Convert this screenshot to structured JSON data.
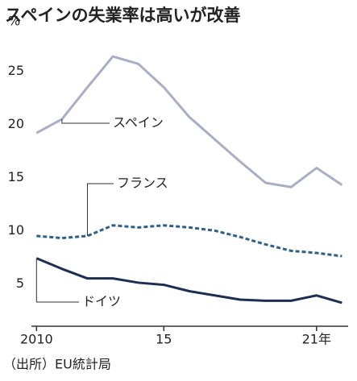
{
  "chart_data": {
    "type": "line",
    "title": "スペインの失業率は高いが改善",
    "y_unit": "%",
    "source": "（出所）EU統計局",
    "x": [
      2010,
      2011,
      2012,
      2013,
      2014,
      2015,
      2016,
      2017,
      2018,
      2019,
      2020,
      2021,
      2022
    ],
    "xlim": [
      2009.8,
      2022.4
    ],
    "xticks": [
      2010,
      {
        "value": 2015,
        "label": "15"
      },
      {
        "value": 2021,
        "label": "21年"
      }
    ],
    "ylim": [
      1,
      28
    ],
    "yticks": [
      5,
      10,
      15,
      20,
      25
    ],
    "grid": false,
    "series": [
      {
        "name": "スペイン",
        "color": "#a9aec4",
        "dashed": false,
        "values": [
          19.2,
          20.5,
          23.5,
          26.4,
          25.7,
          23.5,
          20.7,
          18.6,
          16.5,
          14.5,
          14.1,
          15.9,
          14.3
        ]
      },
      {
        "name": "フランス",
        "color": "#2e5f8a",
        "dashed": true,
        "values": [
          9.5,
          9.3,
          9.5,
          10.5,
          10.3,
          10.5,
          10.3,
          10.0,
          9.4,
          8.7,
          8.1,
          7.9,
          7.6
        ]
      },
      {
        "name": "ドイツ",
        "color": "#1c2f52",
        "dashed": false,
        "values": [
          7.4,
          6.4,
          5.5,
          5.5,
          5.1,
          4.9,
          4.3,
          3.9,
          3.5,
          3.4,
          3.4,
          3.9,
          3.2
        ]
      }
    ]
  }
}
